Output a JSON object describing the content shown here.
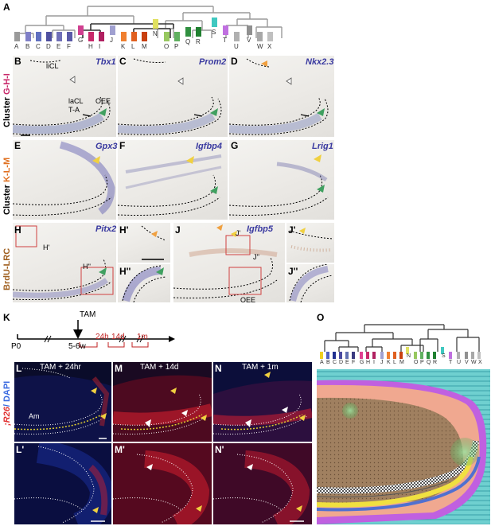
{
  "figure": {
    "panel_letters": {
      "A": "A",
      "B": "B",
      "C": "C",
      "D": "D",
      "E": "E",
      "F": "F",
      "G": "G",
      "H": "H",
      "H1": "H'",
      "H2": "H''",
      "J": "J",
      "J1": "J'",
      "J2": "J''",
      "K": "K",
      "L": "L",
      "M": "M",
      "N": "N",
      "L1": "L'",
      "M1": "M'",
      "N1": "N'",
      "O": "O"
    },
    "clusters": [
      "A",
      "B",
      "C",
      "D",
      "E",
      "F",
      "G",
      "H",
      "I",
      "J",
      "K",
      "L",
      "M",
      "N",
      "O",
      "P",
      "Q",
      "R",
      "S",
      "T",
      "U",
      "V",
      "W",
      "X"
    ],
    "cluster_colors": [
      "#9a9a9a",
      "#8080c8",
      "#6070c0",
      "#4f50a0",
      "#7070b8",
      "#5a5aa8",
      "#d04090",
      "#c8286a",
      "#b02060",
      "#a0a0d0",
      "#f08030",
      "#e06020",
      "#c84010",
      "#e0e060",
      "#98c860",
      "#60b060",
      "#309040",
      "#208030",
      "#40c8c0",
      "#c070e0",
      "#b0b0b0",
      "#909090",
      "#a8a8a8",
      "#c0c0c0"
    ],
    "row_labels": {
      "r1_prefix": "Cluster ",
      "r1_key": "G-H-I",
      "r2_prefix": "Cluster ",
      "r2_key": "K-L-M",
      "r3": "BrdU-LRC"
    },
    "genes": {
      "B": "Tbx1",
      "C": "Prom2",
      "D": "Nkx2.3",
      "E": "Gpx3",
      "F": "Igfbp4",
      "G": "Lrig1",
      "H": "Pitx2",
      "J": "Igfbp5"
    },
    "annotations": {
      "liCL": "liCL",
      "laCL": "laCL",
      "TA": "T-A",
      "OEE_B": "OEE",
      "H1": "H'",
      "H2": "H''",
      "J1": "J'",
      "J2": "J''",
      "OEE_J": "OEE",
      "Am": "Am"
    },
    "timeline": {
      "tam": "TAM",
      "p0": "P0",
      "weeks": "5-6w",
      "t24": "24h",
      "t14": "14d",
      "t1m": "1m"
    },
    "fluor_titles": {
      "L": "TAM + 24hr",
      "M": "TAM + 14d",
      "N": "TAM + 1m"
    },
    "fluor_side": {
      "red": ";R26",
      "blue": "/ DAPI"
    }
  }
}
